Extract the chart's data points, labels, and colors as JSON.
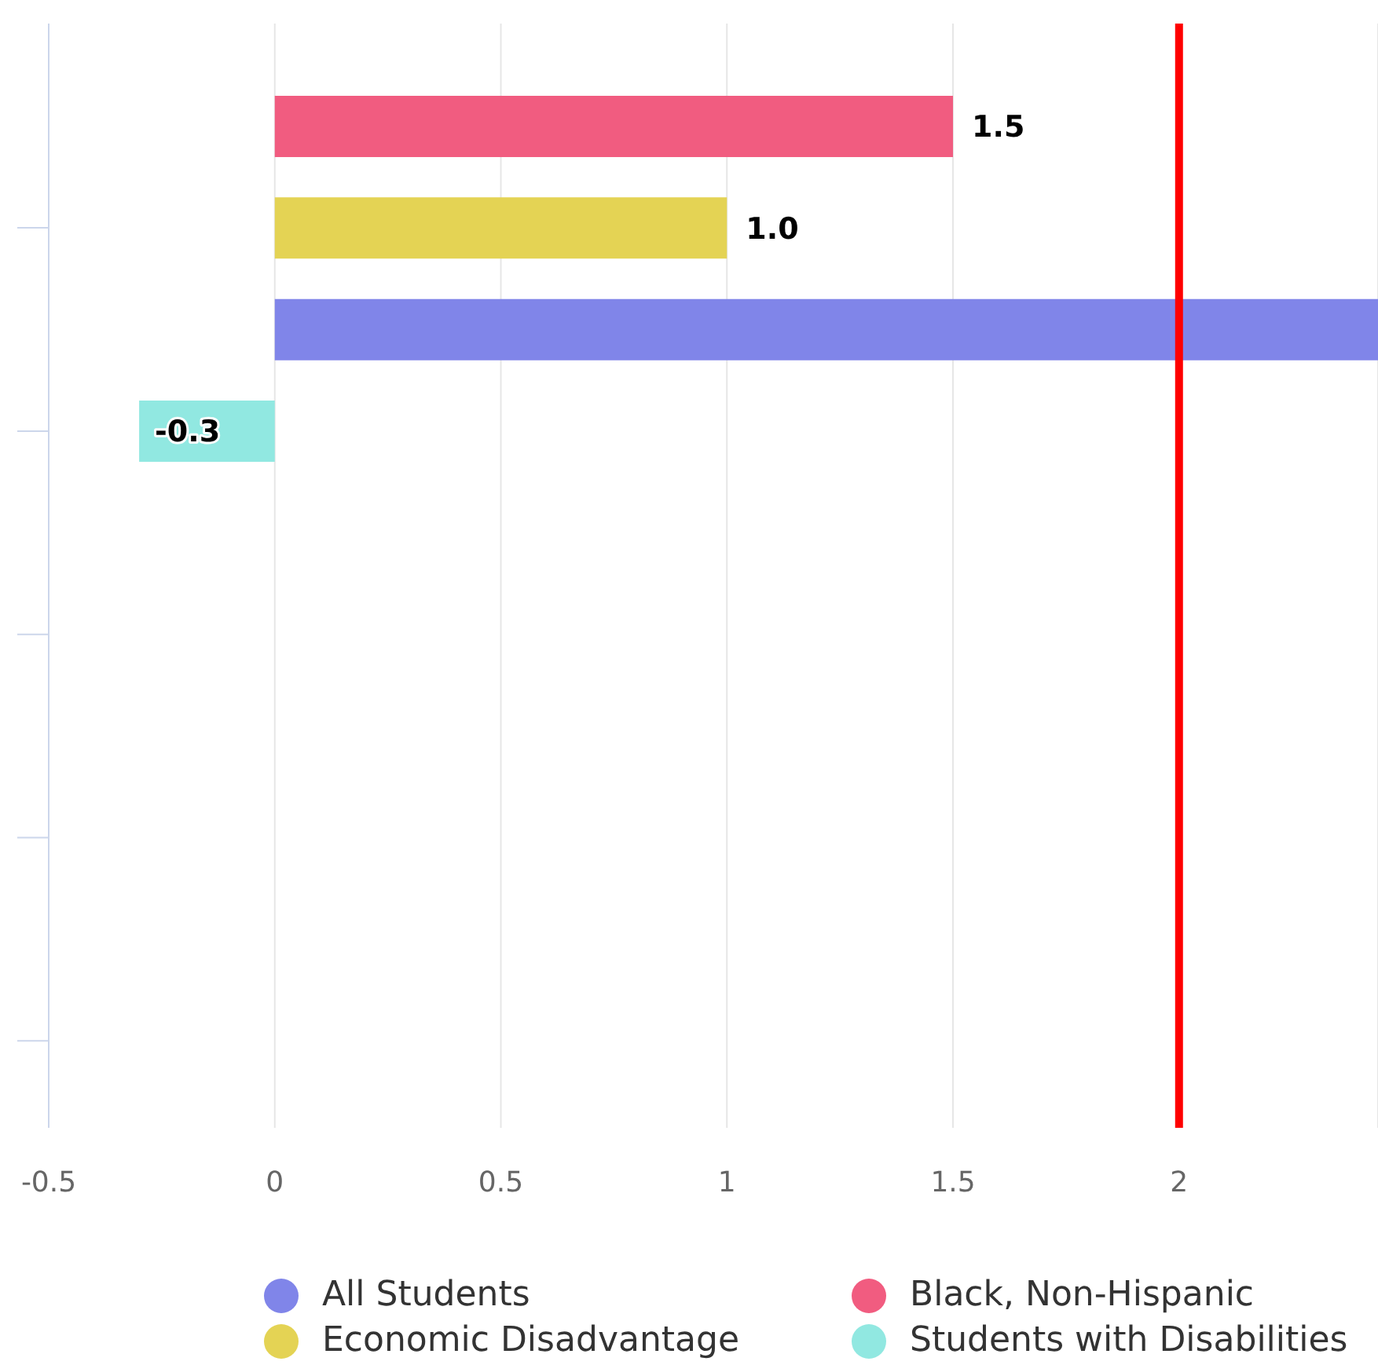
{
  "chart_data": {
    "type": "bar",
    "orientation": "horizontal",
    "stacked": true,
    "categories": [
      null,
      null,
      null,
      null,
      null,
      null,
      null,
      null,
      null,
      null
    ],
    "series": [
      {
        "name": "All Students",
        "color": "#8085e9",
        "values": [
          null,
          null,
          2.44,
          null,
          null,
          null,
          null,
          null,
          null,
          null
        ]
      },
      {
        "name": "Black, Non-Hispanic",
        "color": "#f15c80",
        "values": [
          1.5,
          null,
          null,
          null,
          null,
          null,
          null,
          null,
          null,
          null
        ],
        "value_labels": [
          "1.5",
          null,
          null,
          null,
          null,
          null,
          null,
          null,
          null,
          null
        ]
      },
      {
        "name": "Economic Disadvantage",
        "color": "#e4d354",
        "values": [
          null,
          1,
          null,
          null,
          null,
          null,
          null,
          null,
          null,
          null
        ],
        "value_labels": [
          null,
          "1.0",
          null,
          null,
          null,
          null,
          null,
          null,
          null,
          null
        ]
      },
      {
        "name": "Students with Disabilities",
        "color": "#91e8e1",
        "values": [
          null,
          null,
          null,
          -0.3,
          null,
          null,
          null,
          null,
          null,
          null
        ],
        "value_labels": [
          null,
          null,
          null,
          "-0.3",
          null,
          null,
          null,
          null,
          null,
          null
        ]
      }
    ],
    "xlim": [
      -0.5,
      2.44
    ],
    "xticks": [
      -0.5,
      0,
      0.5,
      1,
      1.5,
      2
    ],
    "grid": "x",
    "legend": "bottom",
    "ref_lines": [
      {
        "axis": "x",
        "value": 2,
        "color": "#ff0000"
      }
    ]
  }
}
